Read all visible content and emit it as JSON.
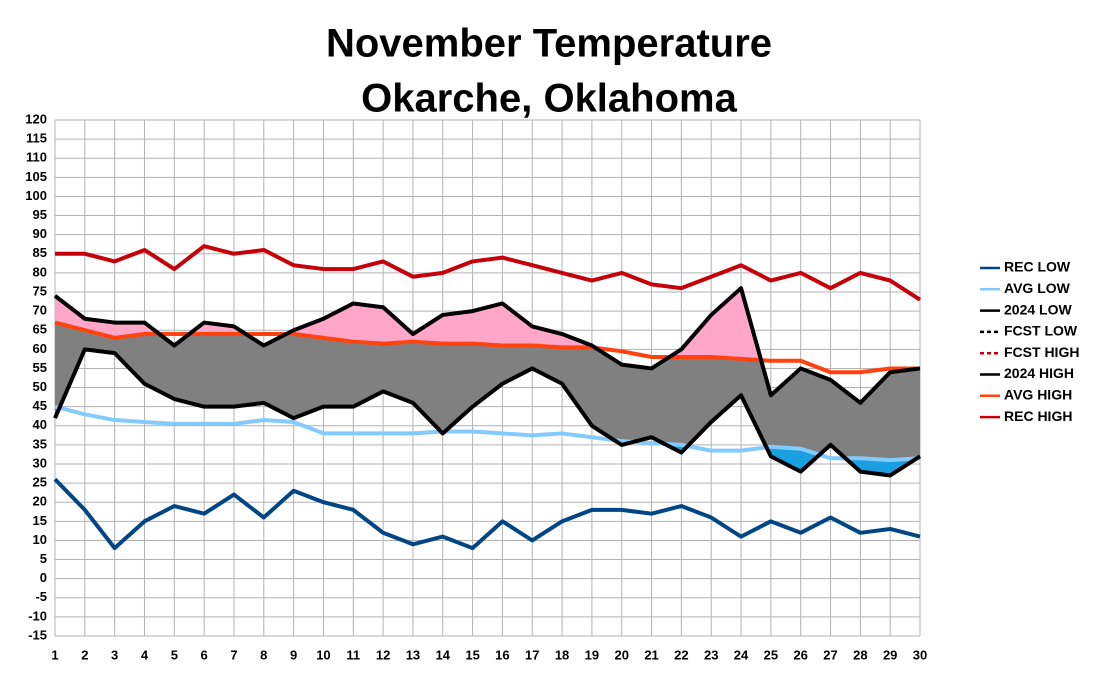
{
  "chart_data": {
    "type": "line",
    "title": "November Temperature",
    "subtitle": "Okarche, Oklahoma",
    "x": [
      1,
      2,
      3,
      4,
      5,
      6,
      7,
      8,
      9,
      10,
      11,
      12,
      13,
      14,
      15,
      16,
      17,
      18,
      19,
      20,
      21,
      22,
      23,
      24,
      25,
      26,
      27,
      28,
      29,
      30
    ],
    "xlim": [
      1,
      30
    ],
    "ylim": [
      -15,
      120
    ],
    "yticks": [
      -15,
      -10,
      -5,
      0,
      5,
      10,
      15,
      20,
      25,
      30,
      35,
      40,
      45,
      50,
      55,
      60,
      65,
      70,
      75,
      80,
      85,
      90,
      95,
      100,
      105,
      110,
      115,
      120
    ],
    "grid": true,
    "legend": "right",
    "series": [
      {
        "name": "REC LOW",
        "color": "#004586",
        "values": [
          26,
          18,
          8,
          15,
          19,
          17,
          22,
          16,
          23,
          20,
          18,
          12,
          9,
          11,
          8,
          15,
          10,
          15,
          18,
          18,
          17,
          19,
          16,
          11,
          15,
          12,
          16,
          12,
          13,
          11
        ]
      },
      {
        "name": "AVG LOW",
        "color": "#83caff",
        "values": [
          45,
          43,
          41.5,
          41,
          40.5,
          40.5,
          40.5,
          41.5,
          41,
          38,
          38,
          38,
          38,
          38.5,
          38.5,
          38,
          37.5,
          38,
          37,
          36,
          35.5,
          35,
          33.5,
          33.5,
          34.5,
          34,
          31.5,
          31.5,
          31,
          31.5
        ]
      },
      {
        "name": "2024 LOW",
        "color": "#000000",
        "values": [
          42,
          60,
          59,
          51,
          47,
          45,
          45,
          46,
          42,
          45,
          45,
          49,
          46,
          38,
          45,
          51,
          55,
          51,
          40,
          35,
          37,
          33,
          41,
          48,
          32,
          28,
          35,
          28,
          27,
          32
        ]
      },
      {
        "name": "FCST LOW",
        "color": "#000000",
        "dashed": true,
        "values": [
          null,
          null,
          null,
          null,
          null,
          null,
          null,
          null,
          null,
          null,
          null,
          null,
          null,
          null,
          null,
          null,
          null,
          null,
          null,
          null,
          null,
          null,
          null,
          null,
          null,
          null,
          null,
          null,
          null,
          null
        ]
      },
      {
        "name": "FCST HIGH",
        "color": "#c5000b",
        "dashed": true,
        "values": [
          null,
          null,
          null,
          null,
          null,
          null,
          null,
          null,
          null,
          null,
          null,
          null,
          null,
          null,
          null,
          null,
          null,
          null,
          null,
          null,
          null,
          null,
          null,
          null,
          null,
          null,
          null,
          null,
          null,
          null
        ]
      },
      {
        "name": "2024 HIGH",
        "color": "#000000",
        "values": [
          74,
          68,
          67,
          67,
          61,
          67,
          66,
          61,
          65,
          68,
          72,
          71,
          64,
          69,
          70,
          72,
          66,
          64,
          61,
          56,
          55,
          60,
          69,
          76,
          48,
          55,
          52,
          46,
          54,
          55
        ]
      },
      {
        "name": "AVG HIGH",
        "color": "#ff420e",
        "values": [
          67,
          65,
          63,
          64,
          64,
          64,
          64,
          64,
          64,
          63,
          62,
          61.5,
          62,
          61.5,
          61.5,
          61,
          61,
          60.5,
          60.5,
          59.5,
          58,
          58,
          58,
          57.5,
          57,
          57,
          54,
          54,
          55,
          55
        ]
      },
      {
        "name": "REC HIGH",
        "color": "#c5000b",
        "values": [
          85,
          85,
          83,
          86,
          81,
          87,
          85,
          86,
          82,
          81,
          81,
          83,
          79,
          80,
          83,
          84,
          82,
          80,
          78,
          80,
          77,
          76,
          79,
          82,
          78,
          80,
          76,
          80,
          78,
          73
        ]
      }
    ]
  }
}
